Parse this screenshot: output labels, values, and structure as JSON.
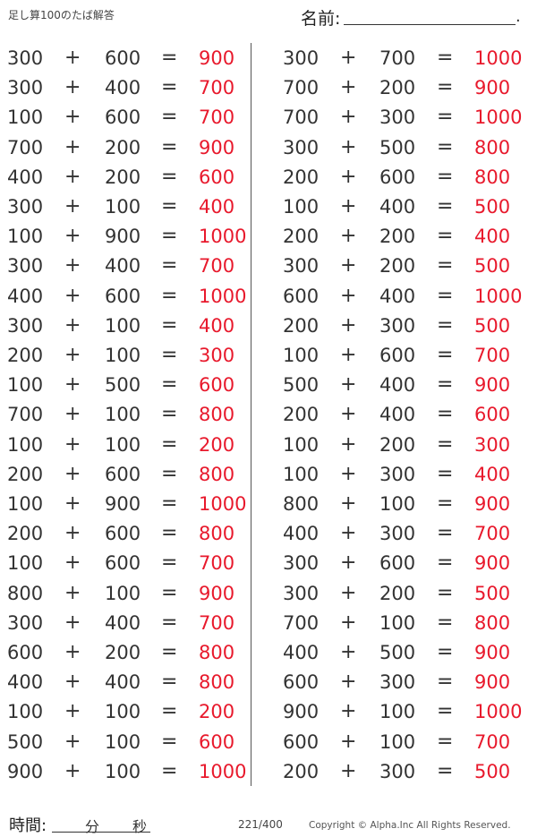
{
  "header": {
    "title": "足し算100のたば解答",
    "name_label": "名前:",
    "name_end": "."
  },
  "colors": {
    "answer": "#e8192c",
    "text": "#333333"
  },
  "left": [
    [
      "300",
      "+",
      "600",
      "=",
      "900"
    ],
    [
      "300",
      "+",
      "400",
      "=",
      "700"
    ],
    [
      "100",
      "+",
      "600",
      "=",
      "700"
    ],
    [
      "700",
      "+",
      "200",
      "=",
      "900"
    ],
    [
      "400",
      "+",
      "200",
      "=",
      "600"
    ],
    [
      "300",
      "+",
      "100",
      "=",
      "400"
    ],
    [
      "100",
      "+",
      "900",
      "=",
      "1000"
    ],
    [
      "300",
      "+",
      "400",
      "=",
      "700"
    ],
    [
      "400",
      "+",
      "600",
      "=",
      "1000"
    ],
    [
      "300",
      "+",
      "100",
      "=",
      "400"
    ],
    [
      "200",
      "+",
      "100",
      "=",
      "300"
    ],
    [
      "100",
      "+",
      "500",
      "=",
      "600"
    ],
    [
      "700",
      "+",
      "100",
      "=",
      "800"
    ],
    [
      "100",
      "+",
      "100",
      "=",
      "200"
    ],
    [
      "200",
      "+",
      "600",
      "=",
      "800"
    ],
    [
      "100",
      "+",
      "900",
      "=",
      "1000"
    ],
    [
      "200",
      "+",
      "600",
      "=",
      "800"
    ],
    [
      "100",
      "+",
      "600",
      "=",
      "700"
    ],
    [
      "800",
      "+",
      "100",
      "=",
      "900"
    ],
    [
      "300",
      "+",
      "400",
      "=",
      "700"
    ],
    [
      "600",
      "+",
      "200",
      "=",
      "800"
    ],
    [
      "400",
      "+",
      "400",
      "=",
      "800"
    ],
    [
      "100",
      "+",
      "100",
      "=",
      "200"
    ],
    [
      "500",
      "+",
      "100",
      "=",
      "600"
    ],
    [
      "900",
      "+",
      "100",
      "=",
      "1000"
    ]
  ],
  "right": [
    [
      "300",
      "+",
      "700",
      "=",
      "1000"
    ],
    [
      "700",
      "+",
      "200",
      "=",
      "900"
    ],
    [
      "700",
      "+",
      "300",
      "=",
      "1000"
    ],
    [
      "300",
      "+",
      "500",
      "=",
      "800"
    ],
    [
      "200",
      "+",
      "600",
      "=",
      "800"
    ],
    [
      "100",
      "+",
      "400",
      "=",
      "500"
    ],
    [
      "200",
      "+",
      "200",
      "=",
      "400"
    ],
    [
      "300",
      "+",
      "200",
      "=",
      "500"
    ],
    [
      "600",
      "+",
      "400",
      "=",
      "1000"
    ],
    [
      "200",
      "+",
      "300",
      "=",
      "500"
    ],
    [
      "100",
      "+",
      "600",
      "=",
      "700"
    ],
    [
      "500",
      "+",
      "400",
      "=",
      "900"
    ],
    [
      "200",
      "+",
      "400",
      "=",
      "600"
    ],
    [
      "100",
      "+",
      "200",
      "=",
      "300"
    ],
    [
      "100",
      "+",
      "300",
      "=",
      "400"
    ],
    [
      "800",
      "+",
      "100",
      "=",
      "900"
    ],
    [
      "400",
      "+",
      "300",
      "=",
      "700"
    ],
    [
      "300",
      "+",
      "600",
      "=",
      "900"
    ],
    [
      "300",
      "+",
      "200",
      "=",
      "500"
    ],
    [
      "700",
      "+",
      "100",
      "=",
      "800"
    ],
    [
      "400",
      "+",
      "500",
      "=",
      "900"
    ],
    [
      "600",
      "+",
      "300",
      "=",
      "900"
    ],
    [
      "900",
      "+",
      "100",
      "=",
      "1000"
    ],
    [
      "600",
      "+",
      "100",
      "=",
      "700"
    ],
    [
      "200",
      "+",
      "300",
      "=",
      "500"
    ]
  ],
  "footer": {
    "time_label": "時間:",
    "minutes": "分",
    "seconds": "秒",
    "page": "221/400",
    "copyright": "Copyright ©  Alpha.Inc All Rights Reserved."
  }
}
